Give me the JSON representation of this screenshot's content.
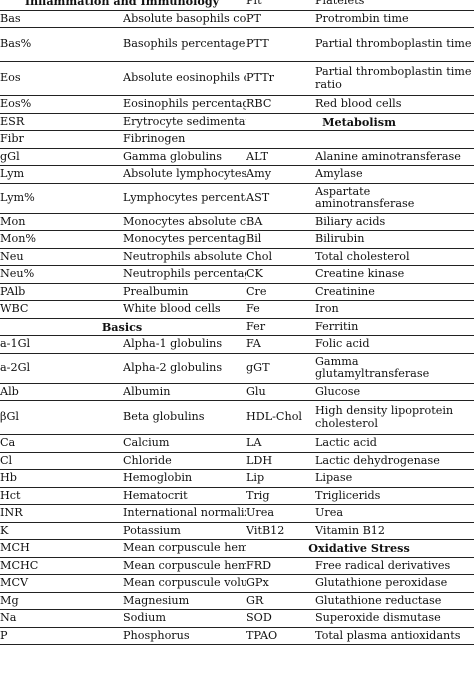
{
  "rows": [
    {
      "left": {
        "section": "Inflammation and Immunology"
      },
      "right": {
        "abbr": "Plt",
        "full": "Platelets"
      }
    },
    {
      "left": {
        "abbr": "Bas",
        "full": "Absolute basophils count"
      },
      "right": {
        "abbr": "PT",
        "full": "Protrombin time"
      }
    },
    {
      "left": {
        "abbr": "Bas%",
        "full": "Basophils percentage"
      },
      "right": {
        "abbr": "PTT",
        "full": "Partial thromboplastin time"
      }
    },
    {
      "left": {
        "abbr": "Eos",
        "full": "Absolute eosinophils count"
      },
      "right": {
        "abbr": "PTTr",
        "full": "Partial thromboplastin time ratio"
      }
    },
    {
      "left": {
        "abbr": "Eos%",
        "full": "Eosinophils percentage"
      },
      "right": {
        "abbr": "RBC",
        "full": "Red blood cells"
      }
    },
    {
      "left": {
        "abbr": "ESR",
        "full": "Erytrocyte sedimentation rate"
      },
      "right": {
        "section": "Metabolism"
      }
    },
    {
      "left": {
        "abbr": "Fibr",
        "full": "Fibrinogen"
      },
      "right": null
    },
    {
      "left": {
        "abbr": "gGl",
        "full": "Gamma globulins"
      },
      "right": {
        "abbr": "ALT",
        "full": "Alanine aminotransferase"
      }
    },
    {
      "left": {
        "abbr": "Lym",
        "full": "Absolute lymphocytes count"
      },
      "right": {
        "abbr": "Amy",
        "full": "Amylase"
      }
    },
    {
      "left": {
        "abbr": "Lym%",
        "full": "Lymphocytes percentage"
      },
      "right": {
        "abbr": "AST",
        "full": "Aspartate aminotransferase"
      }
    },
    {
      "left": {
        "abbr": "Mon",
        "full": "Monocytes absolute count"
      },
      "right": {
        "abbr": "BA",
        "full": "Biliary acids"
      }
    },
    {
      "left": {
        "abbr": "Mon%",
        "full": "Monocytes percentage"
      },
      "right": {
        "abbr": "Bil",
        "full": "Bilirubin"
      }
    },
    {
      "left": {
        "abbr": "Neu",
        "full": "Neutrophils absolute count"
      },
      "right": {
        "abbr": "Chol",
        "full": "Total cholesterol"
      }
    },
    {
      "left": {
        "abbr": "Neu%",
        "full": "Neutrophils percentage"
      },
      "right": {
        "abbr": "CK",
        "full": "Creatine kinase"
      }
    },
    {
      "left": {
        "abbr": "PAlb",
        "full": "Prealbumin"
      },
      "right": {
        "abbr": "Cre",
        "full": "Creatinine"
      }
    },
    {
      "left": {
        "abbr": "WBC",
        "full": "White blood cells"
      },
      "right": {
        "abbr": "Fe",
        "full": "Iron"
      }
    },
    {
      "left": {
        "section": "Basics"
      },
      "right": {
        "abbr": "Fer",
        "full": "Ferritin"
      }
    },
    {
      "left": {
        "abbr": "a-1Gl",
        "full": "Alpha-1 globulins"
      },
      "right": {
        "abbr": "FA",
        "full": "Folic acid"
      }
    },
    {
      "left": {
        "abbr": "a-2Gl",
        "full": "Alpha-2 globulins"
      },
      "right": {
        "abbr": "gGT",
        "full": "Gamma glutamyltransferase"
      }
    },
    {
      "left": {
        "abbr": "Alb",
        "full": "Albumin"
      },
      "right": {
        "abbr": "Glu",
        "full": "Glucose"
      }
    },
    {
      "left": {
        "abbr": "βGl",
        "full": "Beta globulins"
      },
      "right": {
        "abbr": "HDL-Chol",
        "full": "High density lipoprotein cholesterol"
      }
    },
    {
      "left": {
        "abbr": "Ca",
        "full": "Calcium"
      },
      "right": {
        "abbr": "LA",
        "full": "Lactic acid"
      }
    },
    {
      "left": {
        "abbr": "Cl",
        "full": "Chloride"
      },
      "right": {
        "abbr": "LDH",
        "full": "Lactic dehydrogenase"
      }
    },
    {
      "left": {
        "abbr": "Hb",
        "full": "Hemoglobin"
      },
      "right": {
        "abbr": "Lip",
        "full": "Lipase"
      }
    },
    {
      "left": {
        "abbr": "Hct",
        "full": "Hematocrit"
      },
      "right": {
        "abbr": "Trig",
        "full": "Triglicerids"
      }
    },
    {
      "left": {
        "abbr": "INR",
        "full": "International normalized ratio"
      },
      "right": {
        "abbr": "Urea",
        "full": "Urea"
      }
    },
    {
      "left": {
        "abbr": "K",
        "full": "Potassium"
      },
      "right": {
        "abbr": "VitB12",
        "full": "Vitamin B12"
      }
    },
    {
      "left": {
        "abbr": "MCH",
        "full": "Mean corpuscule hemoglobin"
      },
      "right": {
        "section": "Oxidative Stress"
      }
    },
    {
      "left": {
        "abbr": "MCHC",
        "full": "Mean corpuscule hemoglobin content"
      },
      "right": {
        "abbr": "FRD",
        "full": "Free radical derivatives"
      }
    },
    {
      "left": {
        "abbr": "MCV",
        "full": "Mean corpuscule volume"
      },
      "right": {
        "abbr": "GPx",
        "full": "Glutathione peroxidase"
      }
    },
    {
      "left": {
        "abbr": "Mg",
        "full": "Magnesium"
      },
      "right": {
        "abbr": "GR",
        "full": "Glutathione reductase"
      }
    },
    {
      "left": {
        "abbr": "Na",
        "full": "Sodium"
      },
      "right": {
        "abbr": "SOD",
        "full": "Superoxide dismutase"
      }
    },
    {
      "left": {
        "abbr": "P",
        "full": "Phosphorus"
      },
      "right": {
        "abbr": "TPAO",
        "full": "Total plasma antioxidants"
      }
    }
  ]
}
